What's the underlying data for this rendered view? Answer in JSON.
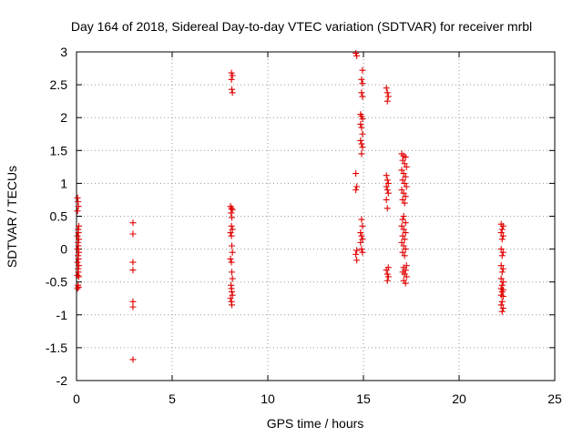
{
  "chart_data": {
    "type": "scatter",
    "title": "Day 164 of 2018, Sidereal Day-to-day VTEC variation (SDTVAR) for receiver mrbl",
    "xlabel": "GPS time / hours",
    "ylabel": "SDTVAR / TECUs",
    "xlim": [
      0,
      25
    ],
    "ylim": [
      -2,
      3
    ],
    "x_ticks": [
      0,
      5,
      10,
      15,
      20,
      25
    ],
    "x_tick_labels": [
      "0",
      "5",
      "10",
      "15",
      "20",
      "25"
    ],
    "y_ticks": [
      -2,
      -1.5,
      -1,
      -0.5,
      0,
      0.5,
      1,
      1.5,
      2,
      2.5,
      3
    ],
    "y_tick_labels": [
      "-2",
      "-1.5",
      "-1",
      "-0.5",
      "0",
      "0.5",
      "1",
      "1.5",
      "2",
      "2.5",
      "3"
    ],
    "grid": true,
    "marker": "+",
    "marker_color": "#e00000",
    "series": [
      {
        "name": "SDTVAR",
        "points": [
          [
            0.05,
            0.78
          ],
          [
            0.08,
            0.72
          ],
          [
            0.1,
            0.65
          ],
          [
            0.05,
            0.58
          ],
          [
            0.12,
            0.35
          ],
          [
            0.08,
            0.3
          ],
          [
            0.1,
            0.25
          ],
          [
            0.05,
            0.2
          ],
          [
            0.12,
            0.15
          ],
          [
            0.08,
            0.1
          ],
          [
            0.1,
            0.05
          ],
          [
            0.05,
            0.0
          ],
          [
            0.12,
            -0.05
          ],
          [
            0.08,
            -0.1
          ],
          [
            0.1,
            -0.15
          ],
          [
            0.05,
            -0.2
          ],
          [
            0.12,
            -0.25
          ],
          [
            0.08,
            -0.3
          ],
          [
            0.1,
            -0.35
          ],
          [
            0.05,
            -0.4
          ],
          [
            0.12,
            -0.42
          ],
          [
            0.08,
            -0.55
          ],
          [
            0.1,
            -0.58
          ],
          [
            0.05,
            -0.6
          ],
          [
            2.95,
            0.4
          ],
          [
            2.95,
            0.23
          ],
          [
            2.95,
            -0.2
          ],
          [
            2.95,
            -0.32
          ],
          [
            2.95,
            -0.8
          ],
          [
            2.95,
            -0.88
          ],
          [
            2.95,
            -1.68
          ],
          [
            8.1,
            2.68
          ],
          [
            8.15,
            2.64
          ],
          [
            8.1,
            2.58
          ],
          [
            8.12,
            2.43
          ],
          [
            8.15,
            2.38
          ],
          [
            8.05,
            0.65
          ],
          [
            8.1,
            0.62
          ],
          [
            8.15,
            0.6
          ],
          [
            8.08,
            0.55
          ],
          [
            8.12,
            0.48
          ],
          [
            8.1,
            0.35
          ],
          [
            8.15,
            0.3
          ],
          [
            8.05,
            0.25
          ],
          [
            8.1,
            0.2
          ],
          [
            8.12,
            0.05
          ],
          [
            8.15,
            -0.05
          ],
          [
            8.05,
            -0.15
          ],
          [
            8.1,
            -0.2
          ],
          [
            8.12,
            -0.35
          ],
          [
            8.15,
            -0.45
          ],
          [
            8.08,
            -0.55
          ],
          [
            8.1,
            -0.6
          ],
          [
            8.12,
            -0.65
          ],
          [
            8.15,
            -0.7
          ],
          [
            8.05,
            -0.75
          ],
          [
            8.1,
            -0.8
          ],
          [
            8.12,
            -0.85
          ],
          [
            14.6,
            2.98
          ],
          [
            14.65,
            2.94
          ],
          [
            14.6,
            1.15
          ],
          [
            14.65,
            0.95
          ],
          [
            14.6,
            0.9
          ],
          [
            14.65,
            -0.02
          ],
          [
            14.6,
            -0.08
          ],
          [
            14.65,
            -0.17
          ],
          [
            14.95,
            2.72
          ],
          [
            14.9,
            2.58
          ],
          [
            14.95,
            2.52
          ],
          [
            14.9,
            2.38
          ],
          [
            14.95,
            2.32
          ],
          [
            14.85,
            2.05
          ],
          [
            14.9,
            2.02
          ],
          [
            14.95,
            1.98
          ],
          [
            14.85,
            1.9
          ],
          [
            14.9,
            1.85
          ],
          [
            14.95,
            1.75
          ],
          [
            14.85,
            1.65
          ],
          [
            14.9,
            1.6
          ],
          [
            14.95,
            1.55
          ],
          [
            14.9,
            1.45
          ],
          [
            14.9,
            0.45
          ],
          [
            14.95,
            0.35
          ],
          [
            14.85,
            0.25
          ],
          [
            14.9,
            0.2
          ],
          [
            14.95,
            0.15
          ],
          [
            14.85,
            0.1
          ],
          [
            14.9,
            0.0
          ],
          [
            14.95,
            -0.05
          ],
          [
            16.2,
            2.45
          ],
          [
            16.25,
            2.38
          ],
          [
            16.3,
            2.32
          ],
          [
            16.25,
            2.25
          ],
          [
            16.2,
            1.12
          ],
          [
            16.25,
            1.05
          ],
          [
            16.3,
            1.0
          ],
          [
            16.2,
            0.95
          ],
          [
            16.25,
            0.9
          ],
          [
            16.3,
            0.85
          ],
          [
            16.2,
            0.75
          ],
          [
            16.25,
            0.62
          ],
          [
            16.3,
            -0.28
          ],
          [
            16.2,
            -0.32
          ],
          [
            16.25,
            -0.38
          ],
          [
            16.3,
            -0.42
          ],
          [
            16.25,
            -0.48
          ],
          [
            17.0,
            1.45
          ],
          [
            17.1,
            1.42
          ],
          [
            17.2,
            1.4
          ],
          [
            17.05,
            1.35
          ],
          [
            17.15,
            1.3
          ],
          [
            17.25,
            1.25
          ],
          [
            17.0,
            1.2
          ],
          [
            17.1,
            1.15
          ],
          [
            17.2,
            1.1
          ],
          [
            17.05,
            1.05
          ],
          [
            17.15,
            1.0
          ],
          [
            17.25,
            0.95
          ],
          [
            17.0,
            0.9
          ],
          [
            17.1,
            0.85
          ],
          [
            17.2,
            0.8
          ],
          [
            17.05,
            0.75
          ],
          [
            17.15,
            0.7
          ],
          [
            17.1,
            0.5
          ],
          [
            17.05,
            0.45
          ],
          [
            17.2,
            0.4
          ],
          [
            17.0,
            0.35
          ],
          [
            17.1,
            0.3
          ],
          [
            17.2,
            0.25
          ],
          [
            17.05,
            0.2
          ],
          [
            17.15,
            0.15
          ],
          [
            17.0,
            0.1
          ],
          [
            17.1,
            0.05
          ],
          [
            17.2,
            0.0
          ],
          [
            17.05,
            -0.05
          ],
          [
            17.15,
            -0.1
          ],
          [
            17.25,
            -0.25
          ],
          [
            17.1,
            -0.28
          ],
          [
            17.2,
            -0.32
          ],
          [
            17.05,
            -0.35
          ],
          [
            17.15,
            -0.38
          ],
          [
            17.25,
            -0.42
          ],
          [
            17.1,
            -0.48
          ],
          [
            17.2,
            -0.52
          ],
          [
            22.2,
            0.38
          ],
          [
            22.3,
            0.35
          ],
          [
            22.25,
            0.3
          ],
          [
            22.2,
            0.25
          ],
          [
            22.3,
            0.2
          ],
          [
            22.25,
            0.15
          ],
          [
            22.2,
            0.0
          ],
          [
            22.3,
            -0.05
          ],
          [
            22.25,
            -0.1
          ],
          [
            22.2,
            -0.25
          ],
          [
            22.3,
            -0.3
          ],
          [
            22.25,
            -0.35
          ],
          [
            22.2,
            -0.45
          ],
          [
            22.3,
            -0.5
          ],
          [
            22.25,
            -0.55
          ],
          [
            22.2,
            -0.6
          ],
          [
            22.3,
            -0.62
          ],
          [
            22.25,
            -0.65
          ],
          [
            22.2,
            -0.7
          ],
          [
            22.3,
            -0.72
          ],
          [
            22.25,
            -0.8
          ],
          [
            22.2,
            -0.85
          ],
          [
            22.3,
            -0.9
          ],
          [
            22.25,
            -0.95
          ]
        ]
      }
    ]
  }
}
